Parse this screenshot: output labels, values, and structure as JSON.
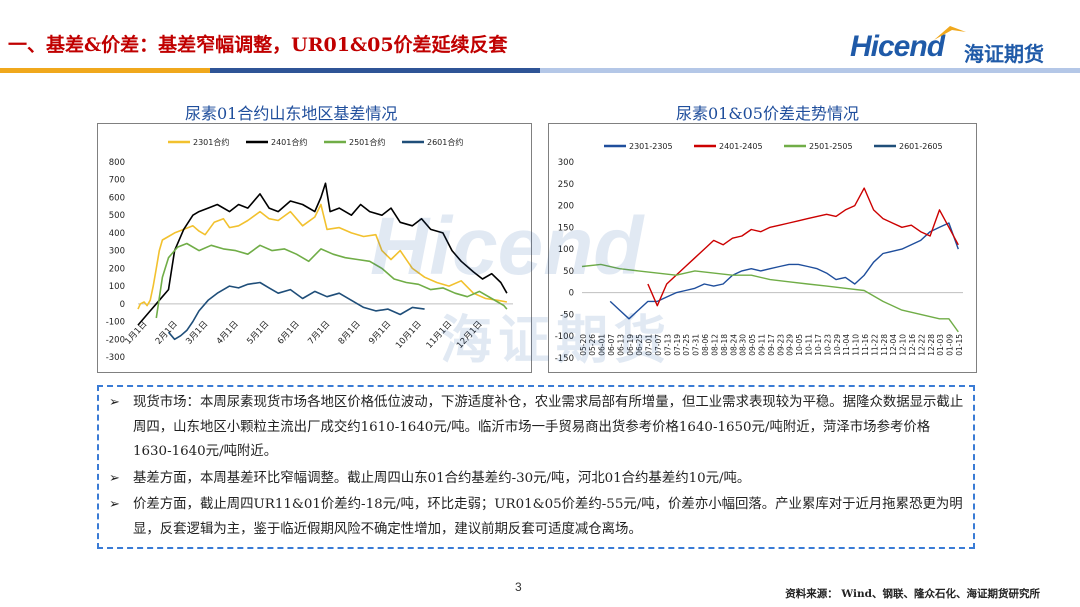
{
  "header": {
    "title": "一、基差&价差：基差窄幅调整，UR01&05价差延续反套",
    "logo_en": "Hicend",
    "logo_cn": "海证期货",
    "accent": "#c00000",
    "brand_color": "#1f5aa8"
  },
  "watermark": {
    "en": "Hicend",
    "cn": "海证期货"
  },
  "chart_data": [
    {
      "type": "line",
      "title": "尿素01合约山东地区基差情况",
      "series": [
        {
          "name": "2301合约",
          "color": "#f2c12e",
          "x": [
            0,
            0.08,
            0.2,
            0.3,
            0.4,
            0.5,
            0.6,
            0.7,
            0.8,
            1.0,
            1.2,
            1.5,
            1.8,
            2.0,
            2.2,
            2.5,
            2.8,
            3.0,
            3.3,
            3.6,
            4.0,
            4.3,
            4.6,
            5.0,
            5.4,
            5.8,
            6.0,
            6.2,
            6.6,
            7.0,
            7.4,
            7.8,
            8.0,
            8.3,
            8.6,
            9.0,
            9.4,
            9.8,
            10.2,
            10.6,
            11.0,
            11.4,
            11.8,
            12.1
          ],
          "y": [
            -30,
            0,
            10,
            -10,
            20,
            100,
            200,
            300,
            360,
            380,
            400,
            420,
            440,
            410,
            390,
            460,
            480,
            430,
            440,
            470,
            520,
            480,
            470,
            520,
            440,
            490,
            560,
            420,
            430,
            400,
            380,
            390,
            300,
            250,
            300,
            200,
            150,
            120,
            100,
            130,
            60,
            30,
            20,
            10
          ]
        },
        {
          "name": "2401合约",
          "color": "#000000",
          "x": [
            0.0,
            0.2,
            0.4,
            0.6,
            0.8,
            1.0,
            1.2,
            1.5,
            1.8,
            2.0,
            2.3,
            2.6,
            3.0,
            3.3,
            3.6,
            4.0,
            4.3,
            4.6,
            5.0,
            5.4,
            5.8,
            6.0,
            6.15,
            6.3,
            6.6,
            7.0,
            7.3,
            7.6,
            8.0,
            8.3,
            8.6,
            9.0,
            9.3,
            9.6,
            10.0,
            10.3,
            10.6,
            11.0,
            11.3,
            11.6,
            11.9,
            12.1
          ],
          "y": [
            -120,
            -80,
            -40,
            0,
            40,
            80,
            300,
            420,
            500,
            520,
            540,
            560,
            520,
            560,
            540,
            620,
            540,
            520,
            580,
            560,
            520,
            600,
            680,
            520,
            540,
            500,
            560,
            520,
            500,
            540,
            460,
            440,
            480,
            420,
            400,
            300,
            240,
            180,
            140,
            170,
            120,
            60
          ]
        },
        {
          "name": "2501合约",
          "color": "#70ad47",
          "x": [
            0.6,
            0.8,
            1.0,
            1.3,
            1.6,
            2.0,
            2.4,
            2.8,
            3.2,
            3.6,
            4.0,
            4.4,
            4.8,
            5.2,
            5.6,
            6.0,
            6.4,
            6.8,
            7.2,
            7.6,
            8.0,
            8.4,
            8.8,
            9.2,
            9.6,
            10.0,
            10.4,
            10.8,
            11.2,
            11.6,
            12.0,
            12.1
          ],
          "y": [
            -80,
            150,
            260,
            320,
            340,
            300,
            330,
            310,
            300,
            280,
            330,
            300,
            310,
            280,
            240,
            310,
            280,
            260,
            250,
            240,
            200,
            140,
            120,
            110,
            80,
            90,
            60,
            40,
            70,
            30,
            -10,
            -30
          ]
        },
        {
          "name": "2601合约",
          "color": "#1f4e79",
          "x": [
            1.0,
            1.2,
            1.4,
            1.6,
            1.8,
            2.0,
            2.3,
            2.6,
            3.0,
            3.3,
            3.6,
            4.0,
            4.3,
            4.6,
            5.0,
            5.4,
            5.8,
            6.2,
            6.6,
            7.0,
            7.4,
            7.8,
            8.2,
            8.6,
            9.0,
            9.4
          ],
          "y": [
            -160,
            -200,
            -180,
            -150,
            -100,
            -40,
            20,
            60,
            100,
            90,
            110,
            120,
            90,
            60,
            80,
            30,
            70,
            40,
            60,
            20,
            -20,
            -40,
            -30,
            -60,
            -20,
            -30
          ]
        }
      ],
      "x_tick_labels": [
        "1月1日",
        "2月1日",
        "3月1日",
        "4月1日",
        "5月1日",
        "6月1日",
        "7月1日",
        "8月1日",
        "9月1日",
        "10月1日",
        "11月1日",
        "12月1日"
      ],
      "ylim": [
        -300,
        800
      ],
      "y_ticks": [
        -300,
        -200,
        -100,
        0,
        100,
        200,
        300,
        400,
        500,
        600,
        700,
        800
      ],
      "legend_position": "top"
    },
    {
      "type": "line",
      "title": "尿素01&05价差走势情况",
      "x_tick_labels": [
        "05-20",
        "05-26",
        "06-01",
        "06-07",
        "06-13",
        "06-19",
        "06-25",
        "07-01",
        "07-07",
        "07-13",
        "07-19",
        "07-25",
        "07-31",
        "08-06",
        "08-12",
        "08-18",
        "08-24",
        "08-30",
        "09-05",
        "09-11",
        "09-17",
        "09-23",
        "09-29",
        "10-05",
        "10-11",
        "10-17",
        "10-23",
        "10-29",
        "11-04",
        "11-10",
        "11-16",
        "11-22",
        "11-28",
        "12-04",
        "12-10",
        "12-16",
        "12-22",
        "12-28",
        "01-03",
        "01-09",
        "01-15"
      ],
      "series": [
        {
          "name": "2301-2305",
          "color": "#1f4e9c",
          "x": [
            3,
            4,
            5,
            6,
            7,
            8,
            9,
            10,
            11,
            12,
            13,
            14,
            15,
            16,
            17,
            18,
            19,
            20,
            21,
            22,
            23,
            24,
            25,
            26,
            27,
            28,
            29,
            30,
            31,
            32,
            33,
            34,
            35,
            36,
            37,
            38,
            39,
            40
          ],
          "y": [
            -20,
            -40,
            -60,
            -40,
            -20,
            -20,
            -10,
            0,
            5,
            10,
            20,
            15,
            20,
            40,
            50,
            55,
            50,
            55,
            60,
            65,
            65,
            60,
            55,
            45,
            30,
            35,
            20,
            40,
            70,
            90,
            95,
            100,
            110,
            120,
            140,
            150,
            160,
            100
          ]
        },
        {
          "name": "2401-2405",
          "color": "#cc0000",
          "x": [
            7,
            8,
            9,
            10,
            11,
            12,
            13,
            14,
            15,
            16,
            17,
            18,
            19,
            20,
            21,
            22,
            23,
            24,
            25,
            26,
            27,
            28,
            29,
            30,
            31,
            32,
            33,
            34,
            35,
            36,
            37,
            38,
            39,
            40
          ],
          "y": [
            20,
            -30,
            20,
            40,
            60,
            80,
            100,
            120,
            110,
            125,
            130,
            145,
            140,
            150,
            155,
            160,
            165,
            170,
            175,
            180,
            175,
            190,
            200,
            240,
            190,
            170,
            160,
            150,
            155,
            140,
            130,
            190,
            150,
            110
          ]
        },
        {
          "name": "2501-2505",
          "color": "#70ad47",
          "x": [
            0,
            2,
            4,
            6,
            8,
            10,
            12,
            14,
            16,
            18,
            20,
            22,
            24,
            26,
            28,
            30,
            32,
            34,
            36,
            38,
            39,
            40
          ],
          "y": [
            60,
            65,
            55,
            50,
            45,
            40,
            50,
            45,
            40,
            40,
            30,
            25,
            20,
            15,
            10,
            5,
            -20,
            -40,
            -50,
            -60,
            -60,
            -90
          ]
        },
        {
          "name": "2601-2605",
          "color": "#1f4e79",
          "x": [],
          "y": []
        }
      ],
      "ylim": [
        -150,
        300
      ],
      "y_ticks": [
        -150,
        -100,
        -50,
        0,
        50,
        100,
        150,
        200,
        250,
        300
      ],
      "legend_position": "top"
    }
  ],
  "textbox": {
    "bullets": [
      "现货市场：本周尿素现货市场各地区价格低位波动，下游适度补仓，农业需求局部有所增量，但工业需求表现较为平稳。据隆众数据显示截止周四，山东地区小颗粒主流出厂成交约1610-1640元/吨。临沂市场一手贸易商出货参考价格1640-1650元/吨附近，菏泽市场参考价格1630-1640元/吨附近。",
      "基差方面，本周基差环比窄幅调整。截止周四山东01合约基差约-30元/吨，河北01合约基差约10元/吨。",
      "价差方面，截止周四UR11&01价差约-18元/吨，环比走弱；UR01&05价差约-55元/吨，价差亦小幅回落。产业累库对于近月拖累恐更为明显，反套逻辑为主，鉴于临近假期风险不确定性增加，建议前期反套可适度减仓离场。"
    ]
  },
  "footer": {
    "page": "3",
    "source": "资料来源： Wind、钢联、隆众石化、海证期货研究所"
  }
}
